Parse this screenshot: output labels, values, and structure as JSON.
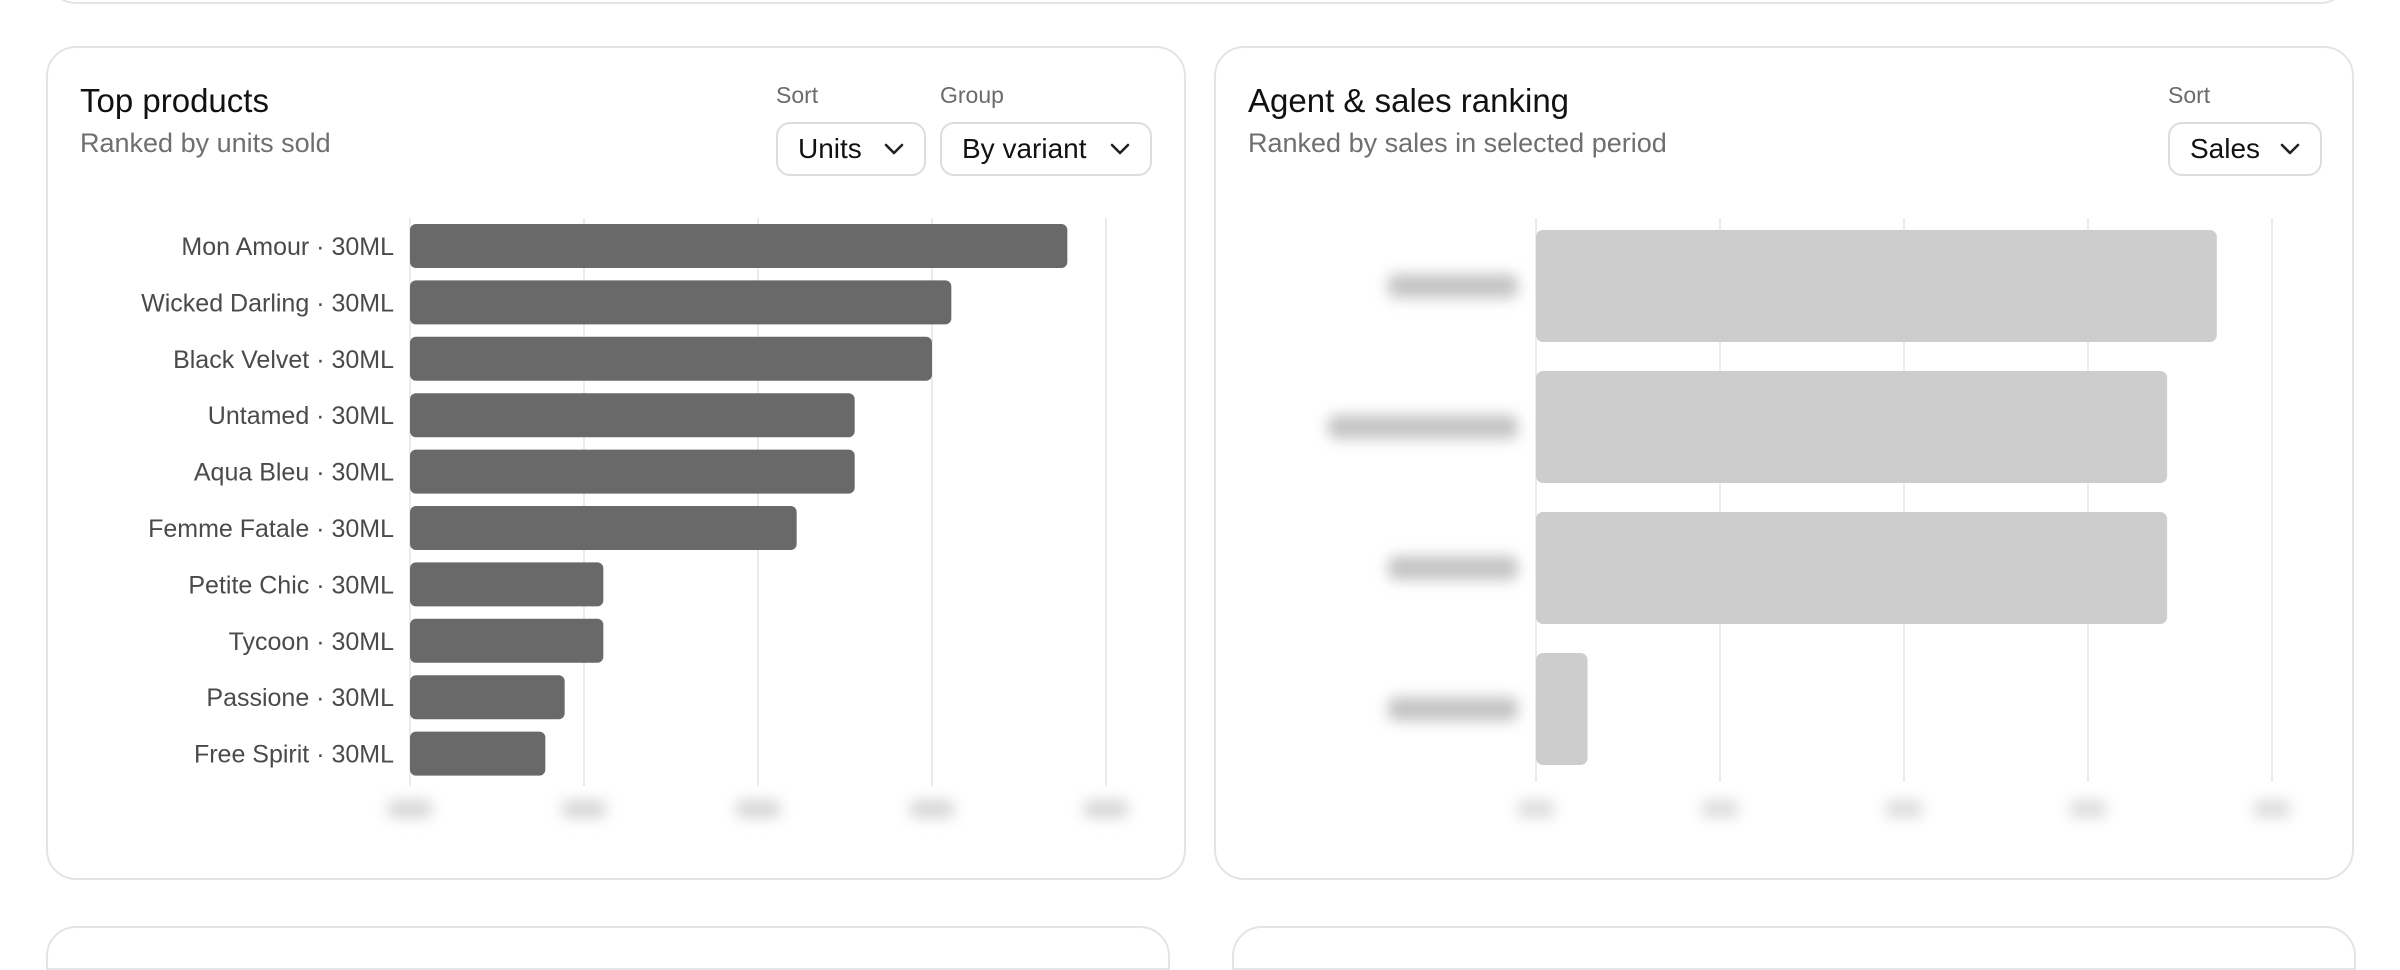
{
  "colors": {
    "bar_primary": "#696969",
    "bar_muted": "#cdcdcd",
    "grid": "#ebebeb",
    "card_border": "#e4e4e4"
  },
  "top_products": {
    "title": "Top products",
    "subtitle": "Ranked by units sold",
    "sort": {
      "label": "Sort",
      "value": "Units",
      "icon": "chevron-down-icon"
    },
    "group": {
      "label": "Group",
      "value": "By variant",
      "icon": "chevron-down-icon"
    }
  },
  "agent_ranking": {
    "title": "Agent & sales ranking",
    "subtitle": "Ranked by sales in selected period",
    "sort": {
      "label": "Sort",
      "value": "Sales",
      "icon": "chevron-down-icon"
    }
  },
  "chart_data": [
    {
      "type": "bar",
      "orientation": "horizontal",
      "categories": [
        "Mon Amour · 30ML",
        "Wicked Darling · 30ML",
        "Black Velvet · 30ML",
        "Untamed · 30ML",
        "Aqua Bleu · 30ML",
        "Femme Fatale · 30ML",
        "Petite Chic · 30ML",
        "Tycoon · 30ML",
        "Passione · 30ML",
        "Free Spirit · 30ML"
      ],
      "values": [
        34,
        28,
        27,
        23,
        23,
        20,
        10,
        10,
        8,
        7
      ],
      "xlim": [
        0,
        36
      ],
      "grid": true,
      "axis_tick_labels_blurred": true
    },
    {
      "type": "bar",
      "orientation": "horizontal",
      "labels_blurred": true,
      "values": [
        3.7,
        3.43,
        3.43,
        0.28
      ],
      "xlim": [
        0,
        4
      ],
      "grid": true
    }
  ]
}
